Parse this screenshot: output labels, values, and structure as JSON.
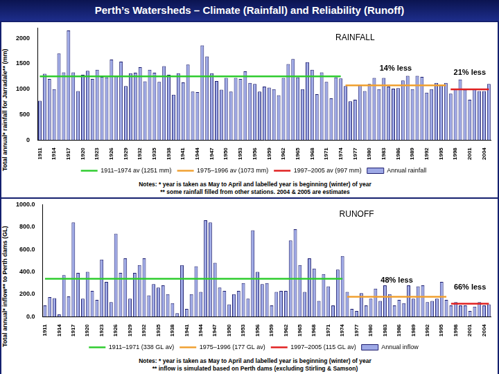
{
  "title": "Perth’s Watersheds – Climate (Rainfall) and Reliability (Runoff)",
  "chart_data": [
    {
      "type": "bar",
      "y_label": "Total annual* rainfall for Jarradale** (mm)",
      "categories": [
        "1911",
        null,
        null,
        "1914",
        null,
        null,
        "1917",
        null,
        null,
        "1920",
        null,
        null,
        "1923",
        null,
        null,
        "1926",
        null,
        null,
        "1929",
        null,
        null,
        "1932",
        null,
        null,
        "1935",
        null,
        null,
        "1938",
        null,
        null,
        "1941",
        null,
        null,
        "1944",
        null,
        null,
        "1947",
        null,
        null,
        "1950",
        null,
        null,
        "1953",
        null,
        null,
        "1956",
        null,
        null,
        "1959",
        null,
        null,
        "1962",
        null,
        null,
        "1965",
        null,
        null,
        "1968",
        null,
        null,
        "1971",
        null,
        null,
        "1974",
        null,
        null,
        "1977",
        null,
        null,
        "1980",
        null,
        null,
        "1983",
        null,
        null,
        "1986",
        null,
        null,
        "1989",
        null,
        null,
        "1992",
        null,
        null,
        "1995",
        null,
        null,
        "1998",
        null,
        null,
        "2001",
        null,
        null,
        "2004",
        null
      ],
      "series": [
        {
          "name": "Annual rainfall",
          "type": "bar",
          "color": "#9ea9e6",
          "values": [
            770,
            1300,
            1200,
            1000,
            1700,
            1330,
            2150,
            1330,
            960,
            1280,
            1360,
            1200,
            1380,
            1240,
            1230,
            1580,
            1250,
            1540,
            1060,
            1310,
            1320,
            1430,
            1150,
            1380,
            1320,
            1140,
            1450,
            1280,
            890,
            1310,
            1130,
            1480,
            950,
            940,
            1860,
            1640,
            1310,
            1160,
            990,
            1220,
            950,
            1220,
            1200,
            1350,
            1120,
            1100,
            950,
            1050,
            1030,
            1000,
            880,
            1220,
            1490,
            1590,
            1230,
            1000,
            1530,
            1380,
            900,
            1330,
            1140,
            820,
            1230,
            1210,
            1060,
            760,
            790,
            1080,
            960,
            1100,
            1220,
            1000,
            1220,
            1050,
            1010,
            1020,
            1170,
            1260,
            1000,
            1260,
            1240,
            930,
            1000,
            1120,
            1080,
            1120,
            910,
            1000,
            1190,
            990,
            790,
            1000,
            960,
            960,
            1100
          ]
        },
        {
          "name": "1911–1974 av (1251 mm)",
          "type": "line",
          "color": "#2ecc2e",
          "values": [
            1251,
            1251,
            1251,
            1251,
            1251,
            1251,
            1251,
            1251,
            1251,
            1251,
            1251,
            1251,
            1251,
            1251,
            1251,
            1251,
            1251,
            1251,
            1251,
            1251,
            1251,
            1251,
            1251,
            1251,
            1251,
            1251,
            1251,
            1251,
            1251,
            1251,
            1251,
            1251,
            1251,
            1251,
            1251,
            1251,
            1251,
            1251,
            1251,
            1251,
            1251,
            1251,
            1251,
            1251,
            1251,
            1251,
            1251,
            1251,
            1251,
            1251,
            1251,
            1251,
            1251,
            1251,
            1251,
            1251,
            1251,
            1251,
            1251,
            1251,
            1251,
            1251,
            1251,
            1251,
            null,
            null,
            null,
            null,
            null,
            null,
            null,
            null,
            null,
            null,
            null,
            null,
            null,
            null,
            null,
            null,
            null,
            null,
            null,
            null,
            null,
            null,
            null,
            null,
            null,
            null,
            null,
            null,
            null,
            null,
            null
          ]
        },
        {
          "name": "1975–1996 av (1073 mm)",
          "type": "line",
          "color": "#f0a030",
          "values": [
            null,
            null,
            null,
            null,
            null,
            null,
            null,
            null,
            null,
            null,
            null,
            null,
            null,
            null,
            null,
            null,
            null,
            null,
            null,
            null,
            null,
            null,
            null,
            null,
            null,
            null,
            null,
            null,
            null,
            null,
            null,
            null,
            null,
            null,
            null,
            null,
            null,
            null,
            null,
            null,
            null,
            null,
            null,
            null,
            null,
            null,
            null,
            null,
            null,
            null,
            null,
            null,
            null,
            null,
            null,
            null,
            null,
            null,
            null,
            null,
            null,
            null,
            null,
            null,
            1073,
            1073,
            1073,
            1073,
            1073,
            1073,
            1073,
            1073,
            1073,
            1073,
            1073,
            1073,
            1073,
            1073,
            1073,
            1073,
            1073,
            1073,
            1073,
            1073,
            1073,
            1073,
            null,
            null,
            null,
            null,
            null,
            null,
            null,
            null,
            null
          ]
        },
        {
          "name": "1997–2005 av (997 mm)",
          "type": "line",
          "color": "#e02020",
          "values": [
            null,
            null,
            null,
            null,
            null,
            null,
            null,
            null,
            null,
            null,
            null,
            null,
            null,
            null,
            null,
            null,
            null,
            null,
            null,
            null,
            null,
            null,
            null,
            null,
            null,
            null,
            null,
            null,
            null,
            null,
            null,
            null,
            null,
            null,
            null,
            null,
            null,
            null,
            null,
            null,
            null,
            null,
            null,
            null,
            null,
            null,
            null,
            null,
            null,
            null,
            null,
            null,
            null,
            null,
            null,
            null,
            null,
            null,
            null,
            null,
            null,
            null,
            null,
            null,
            null,
            null,
            null,
            null,
            null,
            null,
            null,
            null,
            null,
            null,
            null,
            null,
            null,
            null,
            null,
            null,
            null,
            null,
            null,
            null,
            null,
            null,
            997,
            997,
            997,
            997,
            997,
            997,
            997,
            997,
            997
          ]
        }
      ],
      "ylim": [
        0,
        2200
      ],
      "yticks": [
        0,
        500,
        1000,
        1500,
        2000
      ],
      "grid": false,
      "legend": "bottom",
      "annotations": [
        {
          "text": "RAINFALL"
        },
        {
          "text": "14% less",
          "series": "1975–1996 av (1073 mm)"
        },
        {
          "text": "21% less",
          "series": "1997–2005 av (997 mm)"
        }
      ],
      "notes": [
        "Notes: * year is taken as May to April and labelled year is beginning (winter) of year",
        "** some rainfall filled from other stations. 2004 & 2005 are estimates"
      ]
    },
    {
      "type": "bar",
      "y_label": "Total annual* inflow** to Perth dams (GL)",
      "categories": [
        "1911",
        null,
        null,
        "1914",
        null,
        null,
        "1917",
        null,
        null,
        "1920",
        null,
        null,
        "1923",
        null,
        null,
        "1926",
        null,
        null,
        "1929",
        null,
        null,
        "1932",
        null,
        null,
        "1935",
        null,
        null,
        "1938",
        null,
        null,
        "1941",
        null,
        null,
        "1944",
        null,
        null,
        "1947",
        null,
        null,
        "1950",
        null,
        null,
        "1953",
        null,
        null,
        "1956",
        null,
        null,
        "1959",
        null,
        null,
        "1962",
        null,
        null,
        "1965",
        null,
        null,
        "1968",
        null,
        null,
        "1971",
        null,
        null,
        "1974",
        null,
        null,
        "1977",
        null,
        null,
        "1980",
        null,
        null,
        "1983",
        null,
        null,
        "1986",
        null,
        null,
        "1989",
        null,
        null,
        "1992",
        null,
        null,
        "1995",
        null,
        null,
        "1998",
        null,
        null,
        "2001",
        null,
        null,
        "2004",
        null
      ],
      "series": [
        {
          "name": "Annual inflow",
          "type": "bar",
          "color": "#9ea9e6",
          "values": [
            100,
            175,
            165,
            20,
            370,
            180,
            840,
            390,
            160,
            400,
            230,
            150,
            510,
            310,
            130,
            740,
            390,
            520,
            160,
            390,
            460,
            520,
            190,
            290,
            260,
            280,
            200,
            120,
            30,
            460,
            70,
            200,
            450,
            220,
            860,
            840,
            480,
            260,
            230,
            110,
            200,
            230,
            300,
            160,
            770,
            400,
            290,
            300,
            100,
            220,
            230,
            230,
            680,
            780,
            460,
            220,
            520,
            430,
            140,
            380,
            270,
            100,
            420,
            540,
            220,
            70,
            50,
            210,
            100,
            160,
            250,
            140,
            280,
            200,
            100,
            150,
            120,
            280,
            160,
            270,
            280,
            130,
            140,
            160,
            310,
            150,
            100,
            130,
            100,
            100,
            50,
            90,
            130,
            100,
            110
          ]
        },
        {
          "name": "1911–1971 (338 GL av)",
          "type": "line",
          "color": "#2ecc2e",
          "values": [
            338,
            338,
            338,
            338,
            338,
            338,
            338,
            338,
            338,
            338,
            338,
            338,
            338,
            338,
            338,
            338,
            338,
            338,
            338,
            338,
            338,
            338,
            338,
            338,
            338,
            338,
            338,
            338,
            338,
            338,
            338,
            338,
            338,
            338,
            338,
            338,
            338,
            338,
            338,
            338,
            338,
            338,
            338,
            338,
            338,
            338,
            338,
            338,
            338,
            338,
            338,
            338,
            338,
            338,
            338,
            338,
            338,
            338,
            338,
            338,
            338,
            338,
            338,
            338,
            null,
            null,
            null,
            null,
            null,
            null,
            null,
            null,
            null,
            null,
            null,
            null,
            null,
            null,
            null,
            null,
            null,
            null,
            null,
            null,
            null,
            null,
            null,
            null,
            null,
            null,
            null,
            null,
            null,
            null,
            null
          ]
        },
        {
          "name": "1975–1996 (177 GL av)",
          "type": "line",
          "color": "#f0a030",
          "values": [
            null,
            null,
            null,
            null,
            null,
            null,
            null,
            null,
            null,
            null,
            null,
            null,
            null,
            null,
            null,
            null,
            null,
            null,
            null,
            null,
            null,
            null,
            null,
            null,
            null,
            null,
            null,
            null,
            null,
            null,
            null,
            null,
            null,
            null,
            null,
            null,
            null,
            null,
            null,
            null,
            null,
            null,
            null,
            null,
            null,
            null,
            null,
            null,
            null,
            null,
            null,
            null,
            null,
            null,
            null,
            null,
            null,
            null,
            null,
            null,
            null,
            null,
            null,
            null,
            177,
            177,
            177,
            177,
            177,
            177,
            177,
            177,
            177,
            177,
            177,
            177,
            177,
            177,
            177,
            177,
            177,
            177,
            177,
            177,
            177,
            177,
            null,
            null,
            null,
            null,
            null,
            null,
            null,
            null,
            null
          ]
        },
        {
          "name": "1997–2005 (115 GL av)",
          "type": "line",
          "color": "#e02020",
          "values": [
            null,
            null,
            null,
            null,
            null,
            null,
            null,
            null,
            null,
            null,
            null,
            null,
            null,
            null,
            null,
            null,
            null,
            null,
            null,
            null,
            null,
            null,
            null,
            null,
            null,
            null,
            null,
            null,
            null,
            null,
            null,
            null,
            null,
            null,
            null,
            null,
            null,
            null,
            null,
            null,
            null,
            null,
            null,
            null,
            null,
            null,
            null,
            null,
            null,
            null,
            null,
            null,
            null,
            null,
            null,
            null,
            null,
            null,
            null,
            null,
            null,
            null,
            null,
            null,
            null,
            null,
            null,
            null,
            null,
            null,
            null,
            null,
            null,
            null,
            null,
            null,
            null,
            null,
            null,
            null,
            null,
            null,
            null,
            null,
            null,
            null,
            115,
            115,
            115,
            115,
            115,
            115,
            115,
            115,
            115
          ]
        }
      ],
      "ylim": [
        0,
        1000
      ],
      "yticks": [
        {
          "value": 0,
          "label": "0.0"
        },
        {
          "value": 200,
          "label": "200.0"
        },
        {
          "value": 400,
          "label": "400.0"
        },
        {
          "value": 600,
          "label": "600.0"
        },
        {
          "value": 800,
          "label": "800.0"
        },
        {
          "value": 1000,
          "label": "1000.0"
        }
      ],
      "grid": false,
      "legend": "bottom",
      "annotations": [
        {
          "text": "RUNOFF"
        },
        {
          "text": "48% less",
          "series": "1975–1996 (177 GL av)"
        },
        {
          "text": "66% less",
          "series": "1997–2005 (115 GL av)"
        }
      ],
      "notes": [
        "Notes: * year is taken as May to April and labelled year is beginning (winter) of year",
        "** inflow is simulated based on Perth dams (excluding Stirling & Samson)"
      ]
    }
  ]
}
